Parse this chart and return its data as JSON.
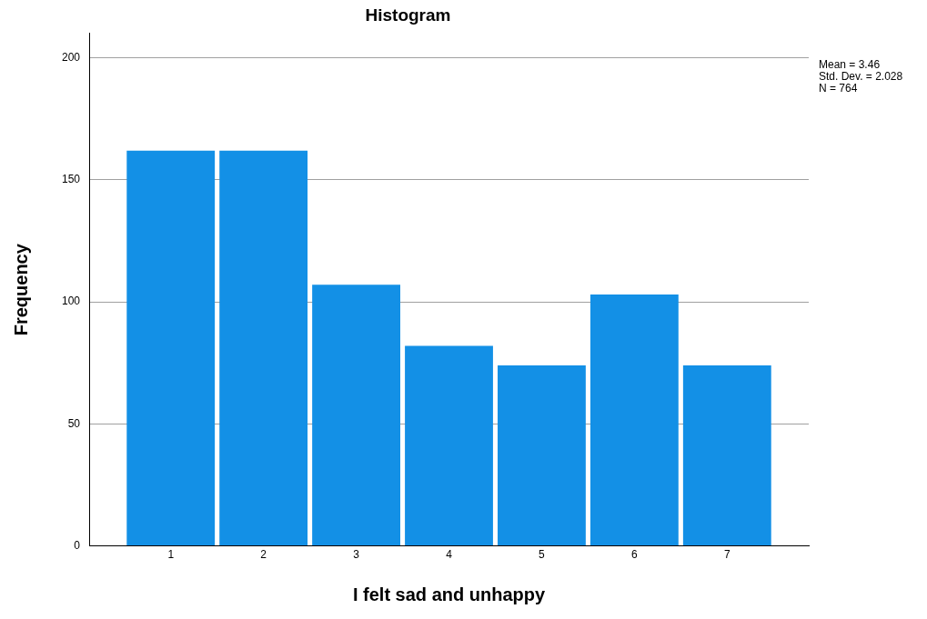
{
  "chart_data": {
    "type": "histogram",
    "title": "Histogram",
    "xlabel": "I felt sad and unhappy",
    "ylabel": "Frequency",
    "bins": [
      0.5,
      1.5,
      2.5,
      3.5,
      4.5,
      5.5,
      6.5,
      7.5
    ],
    "values": [
      162,
      162,
      107,
      82,
      74,
      103,
      74
    ],
    "color": "#1390e6",
    "xlim": [
      0.12,
      7.88
    ],
    "xticks": [
      1,
      2,
      3,
      4,
      5,
      6,
      7
    ],
    "ylim": [
      0,
      210
    ],
    "yticks": [
      0,
      50,
      100,
      150,
      200
    ],
    "grid": "y",
    "annotations": [
      "Mean = 3.46",
      "Std. Dev. = 2.028",
      "N = 764"
    ]
  }
}
